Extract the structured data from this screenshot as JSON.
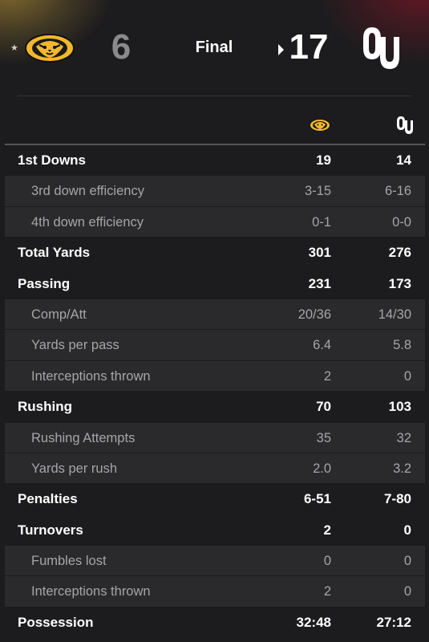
{
  "header": {
    "away_team": {
      "name_icon": "missouri-tiger-logo",
      "score": "6",
      "possession_marker": "★",
      "color": "#f1b82d"
    },
    "home_team": {
      "name_icon": "oklahoma-ou-logo",
      "score": "17",
      "color": "#841617"
    },
    "status": "Final"
  },
  "columns": {
    "away_icon": "missouri-tiger-logo",
    "home_icon": "oklahoma-ou-logo"
  },
  "rows": [
    {
      "type": "main",
      "label": "1st Downs",
      "away": "19",
      "home": "14"
    },
    {
      "type": "sub",
      "label": "3rd down efficiency",
      "away": "3-15",
      "home": "6-16"
    },
    {
      "type": "sub",
      "label": "4th down efficiency",
      "away": "0-1",
      "home": "0-0"
    },
    {
      "type": "main",
      "label": "Total Yards",
      "away": "301",
      "home": "276"
    },
    {
      "type": "main",
      "label": "Passing",
      "away": "231",
      "home": "173"
    },
    {
      "type": "sub",
      "label": "Comp/Att",
      "away": "20/36",
      "home": "14/30"
    },
    {
      "type": "sub",
      "label": "Yards per pass",
      "away": "6.4",
      "home": "5.8"
    },
    {
      "type": "sub",
      "label": "Interceptions thrown",
      "away": "2",
      "home": "0"
    },
    {
      "type": "main",
      "label": "Rushing",
      "away": "70",
      "home": "103"
    },
    {
      "type": "sub",
      "label": "Rushing Attempts",
      "away": "35",
      "home": "32"
    },
    {
      "type": "sub",
      "label": "Yards per rush",
      "away": "2.0",
      "home": "3.2"
    },
    {
      "type": "main",
      "label": "Penalties",
      "away": "6-51",
      "home": "7-80"
    },
    {
      "type": "main",
      "label": "Turnovers",
      "away": "2",
      "home": "0"
    },
    {
      "type": "sub",
      "label": "Fumbles lost",
      "away": "0",
      "home": "0"
    },
    {
      "type": "sub",
      "label": "Interceptions thrown",
      "away": "2",
      "home": "0"
    },
    {
      "type": "main",
      "label": "Possession",
      "away": "32:48",
      "home": "27:12"
    }
  ]
}
